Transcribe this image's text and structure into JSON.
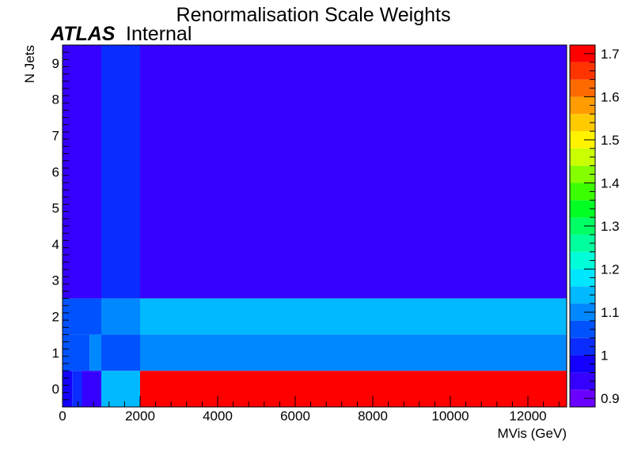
{
  "chart_data": {
    "type": "heatmap",
    "title": "Renormalisation Scale Weights",
    "label": {
      "experiment": "ATLAS",
      "status": "Internal"
    },
    "xlabel": "MVis (GeV)",
    "ylabel": "N Jets",
    "xlim": [
      0,
      13000
    ],
    "ylim": [
      -0.5,
      9.5
    ],
    "x_ticks": [
      0,
      2000,
      4000,
      6000,
      8000,
      10000,
      12000
    ],
    "y_ticks": [
      0,
      1,
      2,
      3,
      4,
      5,
      6,
      7,
      8,
      9
    ],
    "z_range": [
      0.88,
      1.72
    ],
    "z_ticks": [
      0.9,
      1,
      1.1,
      1.2,
      1.3,
      1.4,
      1.5,
      1.6,
      1.7
    ],
    "palette": [
      "#6a00ff",
      "#3600ff",
      "#1300ff",
      "#0a2cff",
      "#0052ff",
      "#0088ff",
      "#00b9ff",
      "#00e6ff",
      "#00ffd8",
      "#00ff9d",
      "#00ff64",
      "#00ff22",
      "#3bff00",
      "#85ff00",
      "#c9ff00",
      "#fff300",
      "#ffca00",
      "#ff9d00",
      "#ff6a00",
      "#ff3400",
      "#ff0000"
    ],
    "cells": [
      {
        "x": [
          0,
          250
        ],
        "y": [
          -0.5,
          0.5
        ],
        "z": 0.97
      },
      {
        "x": [
          250,
          500
        ],
        "y": [
          -0.5,
          0.5
        ],
        "z": 1.0
      },
      {
        "x": [
          500,
          1000
        ],
        "y": [
          -0.5,
          0.5
        ],
        "z": 0.92
      },
      {
        "x": [
          1000,
          2000
        ],
        "y": [
          -0.5,
          0.5
        ],
        "z": 1.16
      },
      {
        "x": [
          2000,
          13000
        ],
        "y": [
          -0.5,
          0.5
        ],
        "z": 1.71
      },
      {
        "x": [
          0,
          700
        ],
        "y": [
          0.5,
          1.5
        ],
        "z": 1.06
      },
      {
        "x": [
          700,
          1000
        ],
        "y": [
          0.5,
          1.5
        ],
        "z": 1.11
      },
      {
        "x": [
          1000,
          2000
        ],
        "y": [
          0.5,
          1.5
        ],
        "z": 1.07
      },
      {
        "x": [
          2000,
          13000
        ],
        "y": [
          0.5,
          1.5
        ],
        "z": 1.11
      },
      {
        "x": [
          0,
          1000
        ],
        "y": [
          1.5,
          2.5
        ],
        "z": 1.06
      },
      {
        "x": [
          1000,
          2000
        ],
        "y": [
          1.5,
          2.5
        ],
        "z": 1.11
      },
      {
        "x": [
          2000,
          13000
        ],
        "y": [
          1.5,
          2.5
        ],
        "z": 1.15
      },
      {
        "x": [
          0,
          1000
        ],
        "y": [
          2.5,
          9.5
        ],
        "z": 0.96
      },
      {
        "x": [
          1000,
          2000
        ],
        "y": [
          2.5,
          9.5
        ],
        "z": 1.0
      },
      {
        "x": [
          2000,
          13000
        ],
        "y": [
          2.5,
          9.5
        ],
        "z": 0.95
      }
    ]
  }
}
